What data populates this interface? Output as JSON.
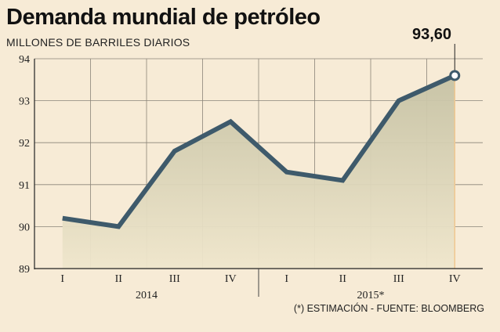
{
  "title": "Demanda mundial de petróleo",
  "subtitle": "MILLONES DE BARRILES DIARIOS",
  "callout": "93,60",
  "source": "(*) ESTIMACIÓN - FUENTE: BLOOMBERG",
  "colors": {
    "line": "#3e5a6b",
    "fill_top": "#c6c2a4",
    "fill_bottom": "#efe6cc",
    "grid": "#8a8478",
    "background": "#f7ebd6",
    "accent_last": "#f0c790"
  },
  "chart_data": {
    "type": "area",
    "categories": [
      "I",
      "II",
      "III",
      "IV",
      "I",
      "II",
      "III",
      "IV"
    ],
    "groups": [
      {
        "label": "2014",
        "categories": [
          "I",
          "II",
          "III",
          "IV"
        ]
      },
      {
        "label": "2015*",
        "categories": [
          "I",
          "II",
          "III",
          "IV"
        ]
      }
    ],
    "values": [
      90.2,
      90.0,
      91.8,
      92.5,
      91.3,
      91.1,
      93.0,
      93.6
    ],
    "y_ticks": [
      "89",
      "90",
      "91",
      "92",
      "93",
      "94"
    ],
    "ylim": [
      89,
      94
    ],
    "title": "Demanda mundial de petróleo",
    "ylabel": "MILLONES DE BARRILES DIARIOS",
    "annotation": {
      "label": "93,60",
      "index": 7
    },
    "grid": true
  }
}
